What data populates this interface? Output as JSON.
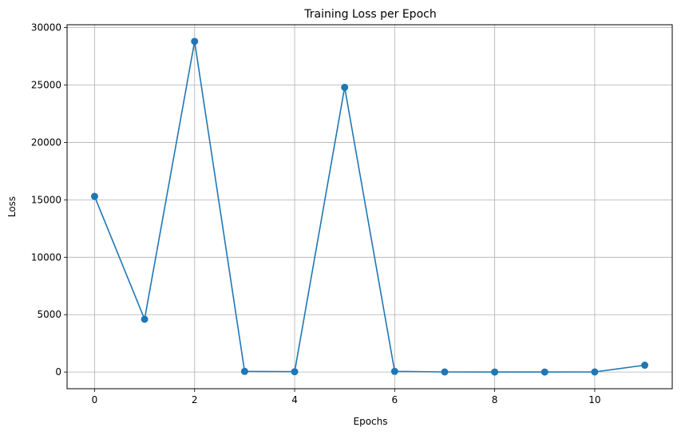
{
  "chart_data": {
    "type": "line",
    "title": "Training Loss per Epoch",
    "xlabel": "Epochs",
    "ylabel": "Loss",
    "xlim": [
      -0.55,
      11.55
    ],
    "ylim": [
      -1450,
      30250
    ],
    "xticks": [
      0,
      2,
      4,
      6,
      8,
      10
    ],
    "yticks": [
      0,
      5000,
      10000,
      15000,
      20000,
      25000,
      30000
    ],
    "grid": true,
    "series": [
      {
        "color": "#1f77b4",
        "marker": "circle",
        "x": [
          0,
          1,
          2,
          3,
          4,
          5,
          6,
          7,
          8,
          9,
          10,
          11
        ],
        "y": [
          15300,
          4600,
          28800,
          60,
          30,
          24800,
          60,
          10,
          5,
          5,
          10,
          600
        ]
      }
    ]
  }
}
